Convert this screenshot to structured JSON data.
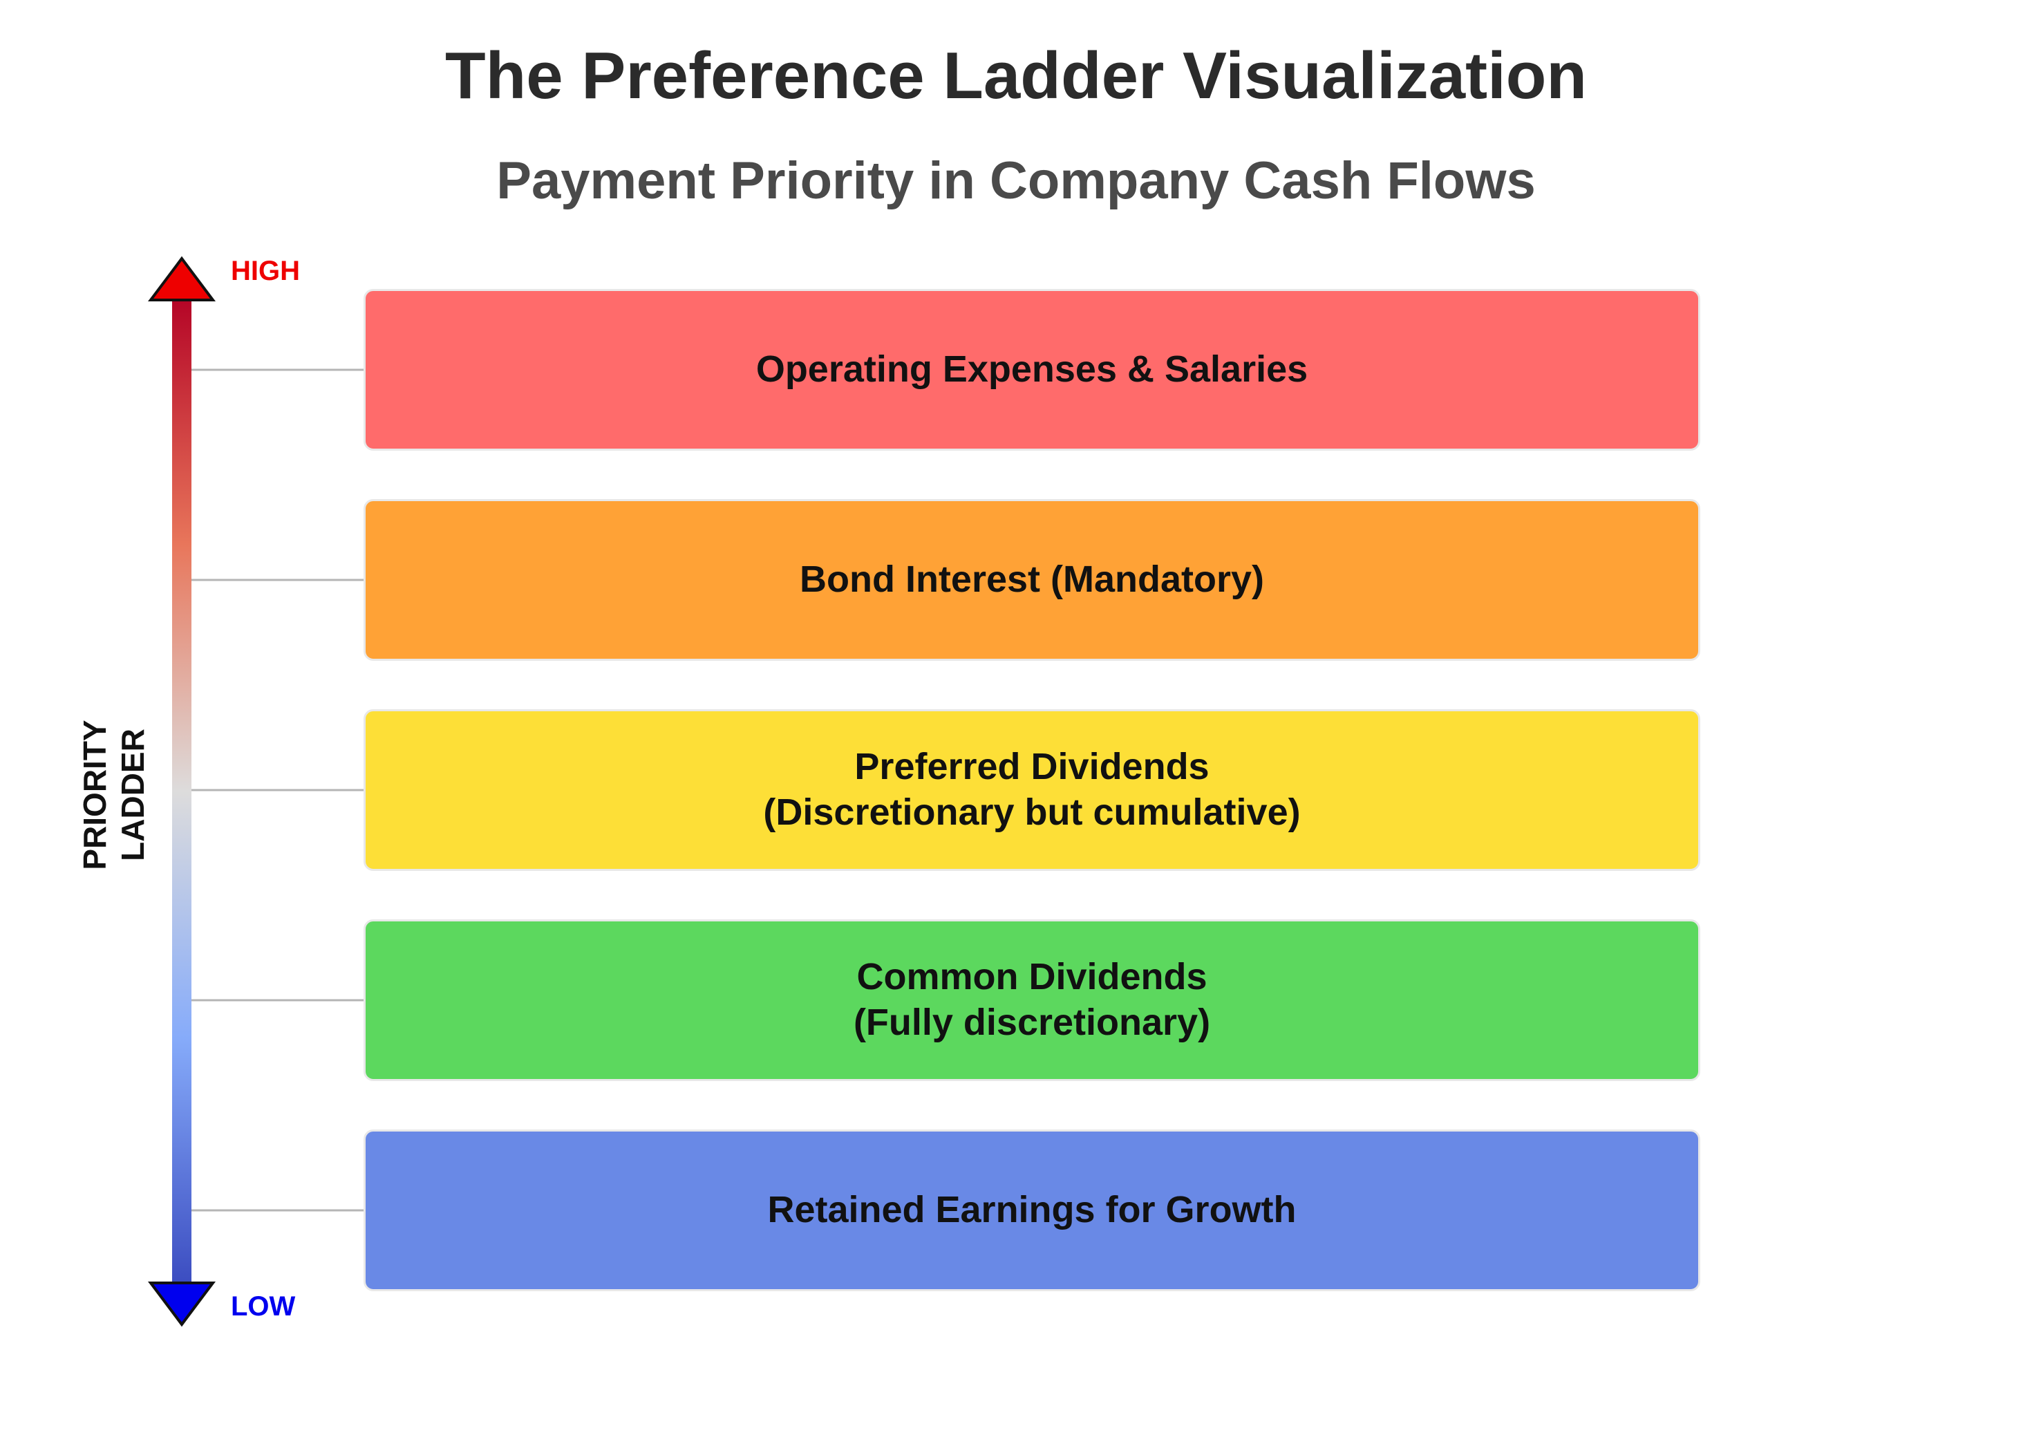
{
  "title": "The Preference Ladder Visualization",
  "subtitle": "Payment Priority in Company Cash Flows",
  "axis": {
    "title_line1": "PRIORITY",
    "title_line2": "LADDER",
    "high_label": "HIGH",
    "low_label": "LOW",
    "high_color": "#ee0000",
    "low_color": "#0000ee"
  },
  "tiers": [
    {
      "label": "Operating Expenses & Salaries",
      "color": "#ff6b6b"
    },
    {
      "label": "Bond Interest (Mandatory)",
      "color": "#ffa236"
    },
    {
      "label": "Preferred Dividends\n(Discretionary but cumulative)",
      "color": "#fddf37"
    },
    {
      "label": "Common Dividends\n(Fully discretionary)",
      "color": "#5cd85e"
    },
    {
      "label": "Retained Earnings for Growth",
      "color": "#6989e6"
    }
  ]
}
